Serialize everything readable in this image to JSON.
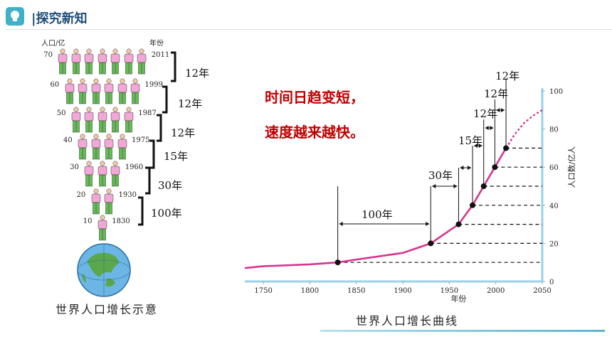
{
  "header": {
    "title": "|探究新知",
    "icon": "lightbulb-icon"
  },
  "population_figure": {
    "ylabel": "人口/亿",
    "year_label": "年份",
    "levels": [
      {
        "population": "70",
        "year": "2011",
        "count": 7
      },
      {
        "population": "60",
        "year": "1999",
        "count": 6
      },
      {
        "population": "50",
        "year": "1987",
        "count": 5
      },
      {
        "population": "40",
        "year": "1975",
        "count": 4
      },
      {
        "population": "30",
        "year": "1960",
        "count": 3
      },
      {
        "population": "20",
        "year": "1930",
        "count": 2
      },
      {
        "population": "10",
        "year": "1830",
        "count": 1
      }
    ],
    "gaps": [
      "12年",
      "12年",
      "12年",
      "15年",
      "30年",
      "100年"
    ],
    "caption": "世界人口增长示意",
    "globe_icon": "globe-icon"
  },
  "annotation": {
    "line1": "时间日趋变短，",
    "line2": "速度越来越快。"
  },
  "chart_data": {
    "type": "line",
    "title": "世界人口增长曲线",
    "xlabel": "年份",
    "ylabel": "人口数/亿人",
    "xlim": [
      1730,
      2050
    ],
    "ylim": [
      0,
      100
    ],
    "xticks": [
      1750,
      1800,
      1850,
      1900,
      1950,
      2000,
      2050
    ],
    "yticks": [
      0,
      20,
      40,
      60,
      80,
      100
    ],
    "series": [
      {
        "x": [
          1730,
          1750,
          1800,
          1830,
          1850,
          1900,
          1930,
          1960,
          1975,
          1987,
          1999,
          2011
        ],
        "y": [
          7,
          8,
          9,
          10,
          11.5,
          15,
          20,
          30,
          40,
          50,
          60,
          70
        ]
      }
    ],
    "projection": {
      "x": [
        2011,
        2020,
        2030,
        2040,
        2050
      ],
      "y": [
        70,
        77,
        83,
        87,
        90
      ]
    },
    "marked_points": [
      {
        "x": 1830,
        "y": 10
      },
      {
        "x": 1930,
        "y": 20
      },
      {
        "x": 1960,
        "y": 30
      },
      {
        "x": 1975,
        "y": 40
      },
      {
        "x": 1987,
        "y": 50
      },
      {
        "x": 1999,
        "y": 60
      },
      {
        "x": 2011,
        "y": 70
      }
    ],
    "interval_labels": [
      "100年",
      "30年",
      "15年",
      "12年",
      "12年",
      "12年"
    ],
    "grid": false,
    "line_color": "#d6358f"
  },
  "colors": {
    "shirt": "#f2a7d6",
    "pants": "#5cc24b",
    "accent": "#3fb0c8",
    "red_text": "#c00000"
  }
}
